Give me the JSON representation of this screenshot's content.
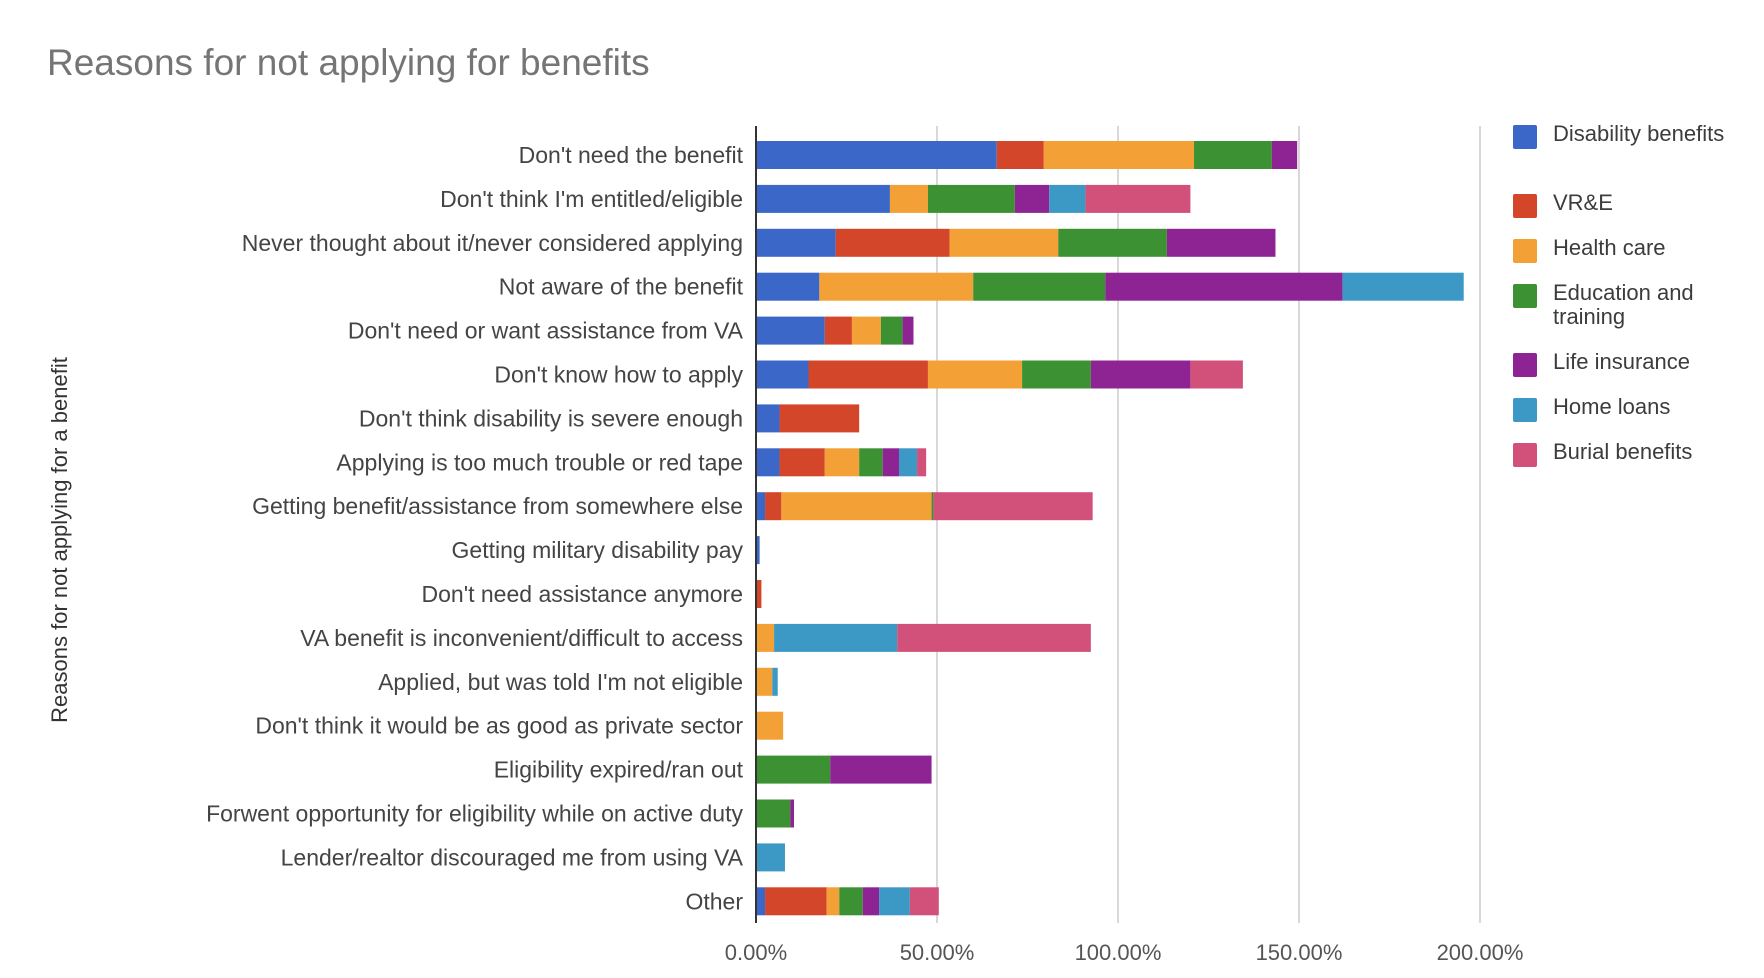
{
  "chart_data": {
    "type": "bar",
    "orientation": "horizontal",
    "stacked": true,
    "title": "Reasons for not applying for benefits",
    "ylabel": "Reasons for not applying for a benefit",
    "xlabel": "",
    "xlim": [
      0,
      200
    ],
    "x_ticks": [
      "0.00%",
      "50.00%",
      "100.00%",
      "150.00%",
      "200.00%"
    ],
    "grid": true,
    "legend_position": "right",
    "categories": [
      "Don't need the benefit",
      "Don't think I'm entitled/eligible",
      "Never thought about it/never considered applying",
      "Not aware of the benefit",
      "Don't need or want assistance from VA",
      "Don't know how to apply",
      "Don't think disability is severe enough",
      "Applying is too much trouble or red tape",
      "Getting benefit/assistance from somewhere else",
      "Getting military disability pay",
      "Don't need assistance anymore",
      "VA benefit is inconvenient/difficult to access",
      "Applied, but was told I'm not eligible",
      "Don't think it would be as good as private sector",
      "Eligibility expired/ran out",
      "Forwent opportunity for eligibility while on active duty",
      "Lender/realtor discouraged me from using VA",
      "Other"
    ],
    "series": [
      {
        "name": "Disability benefits",
        "color": "#3b68c8",
        "values": [
          66.5,
          37,
          22,
          17.5,
          19,
          14.5,
          6.5,
          6.5,
          2.5,
          1,
          0,
          0,
          0,
          0,
          0,
          0,
          0,
          2.5
        ]
      },
      {
        "name": "VR&E",
        "color": "#d4462a",
        "values": [
          13,
          0,
          31.5,
          0,
          7.5,
          33,
          22,
          12.5,
          4.5,
          0,
          1.5,
          0,
          0,
          0,
          0,
          0,
          0,
          17
        ]
      },
      {
        "name": "Health care",
        "color": "#f3a136",
        "values": [
          41.5,
          10.5,
          30,
          42.5,
          8,
          26,
          0,
          9.5,
          41.5,
          0,
          0,
          5,
          4.5,
          7.5,
          0,
          0,
          0,
          3.5
        ]
      },
      {
        "name": "Education and training",
        "color": "#3c9233",
        "values": [
          21.5,
          24,
          30,
          36.5,
          6,
          19,
          0,
          6.5,
          0.5,
          0,
          0,
          0,
          0,
          0,
          20.5,
          9.5,
          0,
          6.5
        ]
      },
      {
        "name": "Life insurance",
        "color": "#8e2493",
        "values": [
          7,
          9.5,
          30,
          65.5,
          3,
          27.5,
          0,
          4.5,
          0,
          0,
          0,
          0,
          0,
          0,
          28,
          1,
          0,
          4.5
        ]
      },
      {
        "name": "Home loans",
        "color": "#3c98c4",
        "values": [
          0,
          10,
          0,
          33.5,
          0,
          0,
          0,
          5,
          0,
          0,
          0,
          34,
          1.5,
          0,
          0,
          0,
          8,
          8.5
        ]
      },
      {
        "name": "Burial benefits",
        "color": "#d1517a",
        "values": [
          0,
          29,
          0,
          0,
          0,
          14.5,
          0,
          2.5,
          44,
          0,
          0,
          53.5,
          0,
          0,
          0,
          0,
          0,
          8
        ]
      }
    ]
  }
}
